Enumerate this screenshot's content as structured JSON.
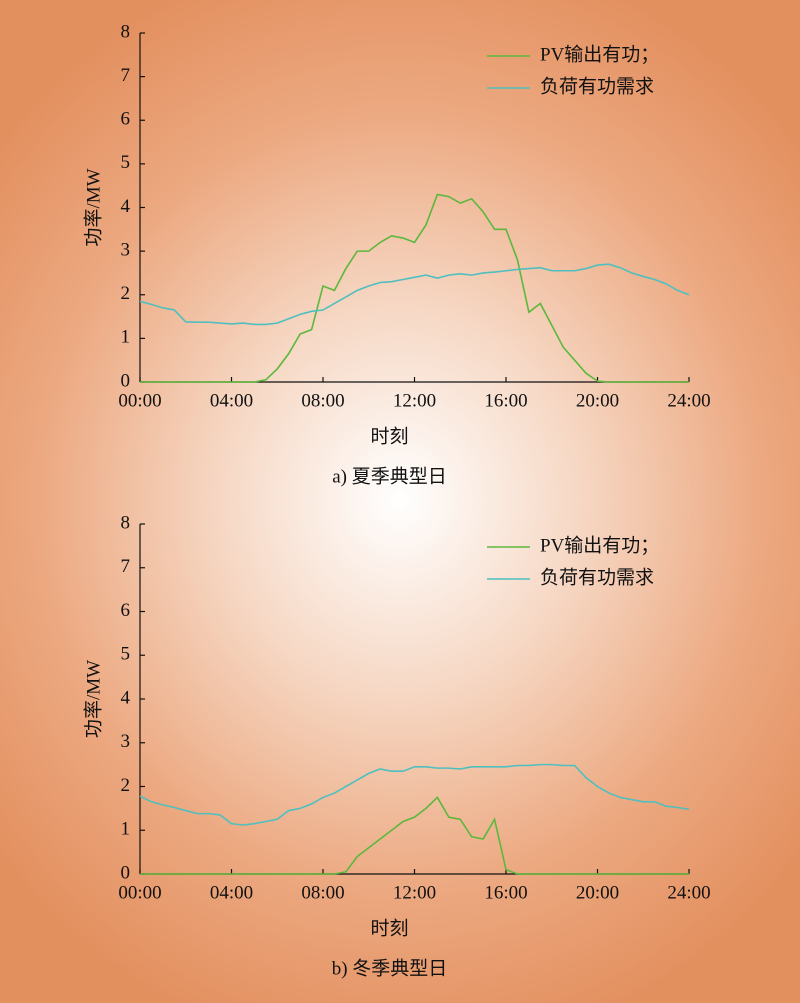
{
  "chart_data": [
    {
      "type": "line",
      "title": "a) 夏季典型日",
      "xlabel": "时刻",
      "ylabel": "功率/MW",
      "x": [
        0,
        0.5,
        1,
        1.5,
        2,
        2.5,
        3,
        3.5,
        4,
        4.5,
        5,
        5.5,
        6,
        6.5,
        7,
        7.5,
        8,
        8.5,
        9,
        9.5,
        10,
        10.5,
        11,
        11.5,
        12,
        12.5,
        13,
        13.5,
        14,
        14.5,
        15,
        15.5,
        16,
        16.5,
        17,
        17.5,
        18,
        18.5,
        19,
        19.5,
        20,
        20.5,
        21,
        21.5,
        22,
        22.5,
        23,
        23.5,
        24
      ],
      "series": [
        {
          "name": "PV输出有功；",
          "color": "#5cb83c",
          "values": [
            0,
            0,
            0,
            0,
            0,
            0,
            0,
            0,
            0,
            0,
            0,
            0.05,
            0.3,
            0.65,
            1.1,
            1.2,
            2.2,
            2.1,
            2.6,
            3.0,
            3.0,
            3.2,
            3.35,
            3.3,
            3.2,
            3.6,
            4.3,
            4.25,
            4.1,
            4.2,
            3.9,
            3.5,
            3.5,
            2.8,
            1.6,
            1.8,
            1.3,
            0.8,
            0.5,
            0.2,
            0.02,
            0,
            0,
            0,
            0,
            0,
            0,
            0,
            0
          ]
        },
        {
          "name": "负荷有功需求",
          "color": "#4fbfbf",
          "values": [
            1.85,
            1.78,
            1.7,
            1.65,
            1.38,
            1.37,
            1.37,
            1.35,
            1.33,
            1.35,
            1.32,
            1.32,
            1.35,
            1.45,
            1.55,
            1.62,
            1.65,
            1.8,
            1.95,
            2.1,
            2.2,
            2.28,
            2.3,
            2.35,
            2.4,
            2.45,
            2.38,
            2.45,
            2.48,
            2.45,
            2.5,
            2.52,
            2.55,
            2.58,
            2.6,
            2.62,
            2.55,
            2.55,
            2.55,
            2.6,
            2.68,
            2.7,
            2.62,
            2.5,
            2.42,
            2.35,
            2.25,
            2.1,
            2.0
          ]
        }
      ],
      "xlim": [
        0,
        24
      ],
      "xticks": [
        {
          "value": 0,
          "label": "00:00"
        },
        {
          "value": 4,
          "label": "04:00"
        },
        {
          "value": 8,
          "label": "08:00"
        },
        {
          "value": 12,
          "label": "12:00"
        },
        {
          "value": 16,
          "label": "16:00"
        },
        {
          "value": 20,
          "label": "20:00"
        },
        {
          "value": 24,
          "label": "24:00"
        }
      ],
      "ylim": [
        0,
        8
      ],
      "yticks": [
        0,
        1,
        2,
        3,
        4,
        5,
        6,
        7,
        8
      ],
      "legend": "upper right"
    },
    {
      "type": "line",
      "title": "b) 冬季典型日",
      "xlabel": "时刻",
      "ylabel": "功率/MW",
      "x": [
        0,
        0.5,
        1,
        1.5,
        2,
        2.5,
        3,
        3.5,
        4,
        4.5,
        5,
        5.5,
        6,
        6.5,
        7,
        7.5,
        8,
        8.5,
        9,
        9.5,
        10,
        10.5,
        11,
        11.5,
        12,
        12.5,
        13,
        13.5,
        14,
        14.5,
        15,
        15.5,
        16,
        16.5,
        17,
        17.5,
        18,
        18.5,
        19,
        19.5,
        20,
        20.5,
        21,
        21.5,
        22,
        22.5,
        23,
        23.5,
        24
      ],
      "series": [
        {
          "name": "PV输出有功；",
          "color": "#5cb83c",
          "values": [
            0,
            0,
            0,
            0,
            0,
            0,
            0,
            0,
            0,
            0,
            0,
            0,
            0,
            0,
            0,
            0,
            0,
            0,
            0.05,
            0.4,
            0.6,
            0.8,
            1.0,
            1.2,
            1.3,
            1.5,
            1.75,
            1.3,
            1.25,
            0.85,
            0.8,
            1.25,
            0.1,
            0,
            0,
            0,
            0,
            0,
            0,
            0,
            0,
            0,
            0,
            0,
            0,
            0,
            0,
            0,
            0
          ]
        },
        {
          "name": "负荷有功需求",
          "color": "#4fbfbf",
          "values": [
            1.78,
            1.65,
            1.58,
            1.52,
            1.45,
            1.38,
            1.38,
            1.35,
            1.15,
            1.12,
            1.15,
            1.2,
            1.25,
            1.45,
            1.5,
            1.6,
            1.75,
            1.85,
            2.0,
            2.15,
            2.3,
            2.4,
            2.35,
            2.35,
            2.45,
            2.45,
            2.42,
            2.42,
            2.4,
            2.45,
            2.45,
            2.45,
            2.45,
            2.48,
            2.48,
            2.5,
            2.5,
            2.48,
            2.48,
            2.2,
            2.0,
            1.85,
            1.75,
            1.7,
            1.65,
            1.65,
            1.55,
            1.52,
            1.48
          ]
        }
      ],
      "xlim": [
        0,
        24
      ],
      "xticks": [
        {
          "value": 0,
          "label": "00:00"
        },
        {
          "value": 4,
          "label": "04:00"
        },
        {
          "value": 8,
          "label": "08:00"
        },
        {
          "value": 12,
          "label": "12:00"
        },
        {
          "value": 16,
          "label": "16:00"
        },
        {
          "value": 20,
          "label": "20:00"
        },
        {
          "value": 24,
          "label": "24:00"
        }
      ],
      "ylim": [
        0,
        8
      ],
      "yticks": [
        0,
        1,
        2,
        3,
        4,
        5,
        6,
        7,
        8
      ],
      "legend": "upper right"
    }
  ]
}
